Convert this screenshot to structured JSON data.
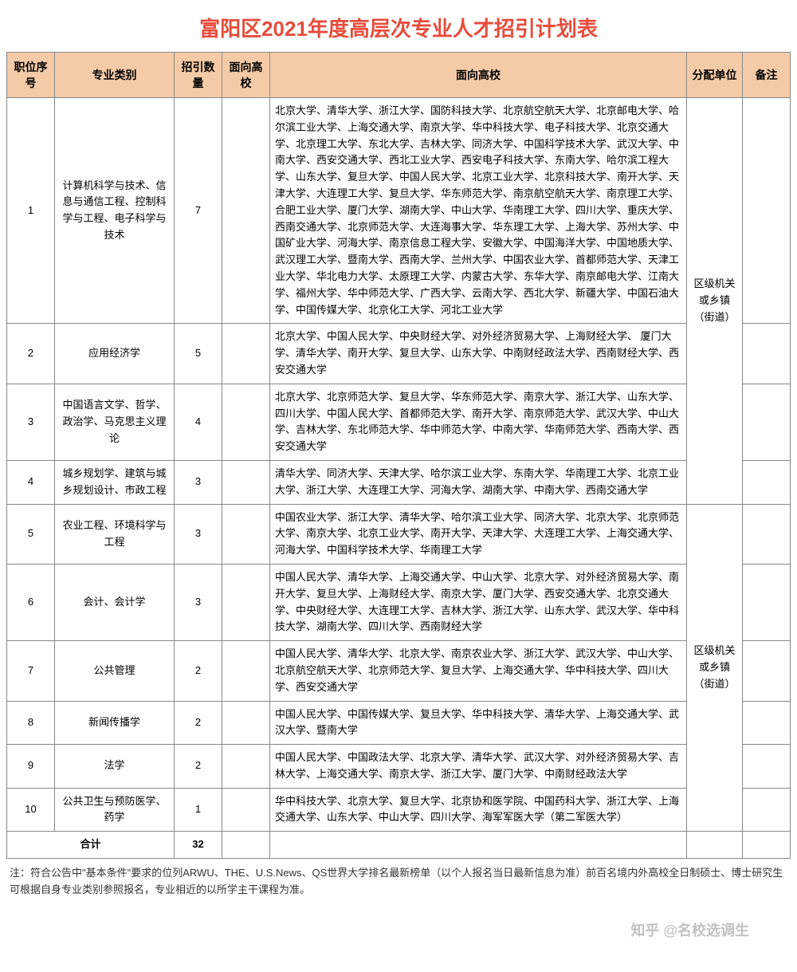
{
  "title": "富阳区2021年度高层次专业人才招引计划表",
  "columns": [
    "职位序号",
    "专业类别",
    "招引数量",
    "面向高校",
    "面向高校",
    "分配单位",
    "备注"
  ],
  "unit_label": "区级机关或乡镇（街道）",
  "rows": [
    {
      "idx": "1",
      "major": "计算机科学与技术、信息与通信工程、控制科学与工程、电子科学与技术",
      "count": "7",
      "schools": "北京大学、清华大学、浙江大学、国防科技大学、北京航空航天大学、北京邮电大学、哈尔滨工业大学、上海交通大学、南京大学、华中科技大学、电子科技大学、北京交通大学、北京理工大学、东北大学、吉林大学、同济大学、中国科学技术大学、武汉大学、中南大学、西安交通大学、西北工业大学、西安电子科技大学、东南大学、哈尔滨工程大学、山东大学、复旦大学、中国人民大学、北京工业大学、北京科技大学、南开大学、天津大学、大连理工大学、复旦大学、华东师范大学、南京航空航天大学、南京理工大学、合肥工业大学、厦门大学、湖南大学、中山大学、华南理工大学、四川大学、重庆大学、西南交通大学、北京师范大学、大连海事大学、华东理工大学、上海大学、苏州大学、中国矿业大学、河海大学、南京信息工程大学、安徽大学、中国海洋大学、中国地质大学、武汉理工大学、暨南大学、西南大学、兰州大学、中国农业大学、首都师范大学、天津工业大学、华北电力大学、太原理工大学、内蒙古大学、东华大学、南京邮电大学、江南大学、福州大学、华中师范大学、广西大学、云南大学、西北大学、新疆大学、中国石油大学、中国传媒大学、北京化工大学、河北工业大学"
    },
    {
      "idx": "2",
      "major": "应用经济学",
      "count": "5",
      "schools": "北京大学、中国人民大学、中央财经大学、对外经济贸易大学、上海财经大学、 厦门大学、清华大学、南开大学、复旦大学、山东大学、中南财经政法大学、西南财经大学、西安交通大学"
    },
    {
      "idx": "3",
      "major": "中国语言文学、哲学、政治学、马克思主义理论",
      "count": "4",
      "schools": "北京大学、北京师范大学、复旦大学、华东师范大学、南京大学、浙江大学、山东大学、四川大学、中国人民大学、首都师范大学、南开大学、南京师范大学、武汉大学、中山大学、吉林大学、东北师范大学、华中师范大学、中南大学、华南师范大学、西南大学、西安交通大学"
    },
    {
      "idx": "4",
      "major": "城乡规划学、建筑与城乡规划设计、市政工程",
      "count": "3",
      "schools": "清华大学、同济大学、天津大学、哈尔滨工业大学、东南大学、华南理工大学、北京工业大学、浙江大学、大连理工大学、河海大学、湖南大学、中南大学、西南交通大学"
    },
    {
      "idx": "5",
      "major": "农业工程、环境科学与工程",
      "count": "3",
      "schools": "中国农业大学、浙江大学、清华大学、哈尔滨工业大学、同济大学、北京大学、北京师范大学、南京大学、北京工业大学、南开大学、天津大学、大连理工大学、上海交通大学、河海大学、中国科学技术大学、华南理工大学"
    },
    {
      "idx": "6",
      "major": "会计、会计学",
      "count": "3",
      "schools": "中国人民大学、清华大学、上海交通大学、中山大学、北京大学、对外经济贸易大学、南开大学、复旦大学、上海财经大学、南京大学、厦门大学、西安交通大学、北京交通大学、中央财经大学、大连理工大学、吉林大学、浙江大学、山东大学、武汉大学、华中科技大学、湖南大学、四川大学、西南财经大学"
    },
    {
      "idx": "7",
      "major": "公共管理",
      "count": "2",
      "schools": "中国人民大学、清华大学、北京大学、南京农业大学、浙江大学、武汉大学、中山大学、北京航空航天大学、北京师范大学、复旦大学、上海交通大学、华中科技大学、四川大学、西安交通大学"
    },
    {
      "idx": "8",
      "major": "新闻传播学",
      "count": "2",
      "schools": "中国人民大学、中国传媒大学、复旦大学、华中科技大学、清华大学、上海交通大学、武汉大学、暨南大学"
    },
    {
      "idx": "9",
      "major": "法学",
      "count": "2",
      "schools": "中国人民大学、中国政法大学、北京大学、清华大学、武汉大学、对外经济贸易大学、吉林大学、上海交通大学、南京大学、浙江大学、厦门大学、中南财经政法大学"
    },
    {
      "idx": "10",
      "major": "公共卫生与预防医学、药学",
      "count": "1",
      "schools": "华中科技大学、北京大学、复旦大学、北京协和医学院、中国药科大学、浙江大学、上海交通大学、山东大学、中山大学、四川大学、海军军医大学（第二军医大学）"
    }
  ],
  "total_label": "合计",
  "total_count": "32",
  "footnote": "注：符合公告中\"基本条件\"要求的位列ARWU、THE、U.S.News、QS世界大学排名最新榜单（以个人报名当日最新信息为准）前百名境内外高校全日制硕士、博士研究生可根据自身专业类别参照报名，专业相近的以所学主干课程为准。",
  "watermark": "知乎 @名校选调生",
  "colors": {
    "title": "#e74c3c",
    "header_bg": "#f5cba7",
    "border": "#888888",
    "text": "#333333"
  }
}
